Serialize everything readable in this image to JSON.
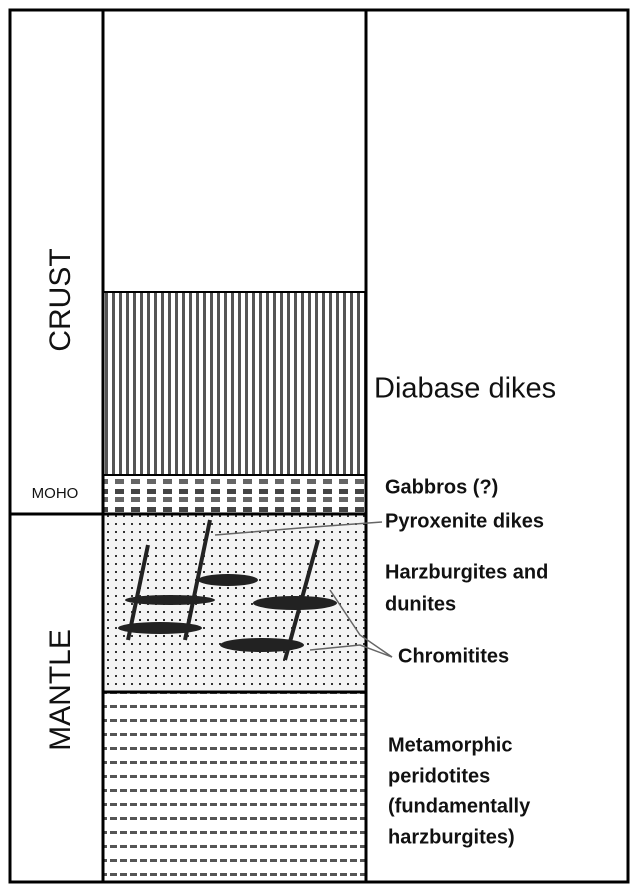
{
  "column_labels": {
    "crust": "CRUST",
    "moho": "MOHO",
    "mantle": "MANTLE"
  },
  "units": [
    {
      "lines": [
        "Diabase dikes"
      ]
    },
    {
      "lines": [
        "Gabbros (?)"
      ]
    },
    {
      "lines": [
        "Pyroxenite dikes"
      ]
    },
    {
      "lines": [
        "Harzburgites and",
        "dunites"
      ]
    },
    {
      "lines": [
        "Chromitites"
      ]
    },
    {
      "lines": [
        "Metamorphic",
        "peridotites",
        "(fundamentally",
        "harzburgites)"
      ]
    }
  ]
}
